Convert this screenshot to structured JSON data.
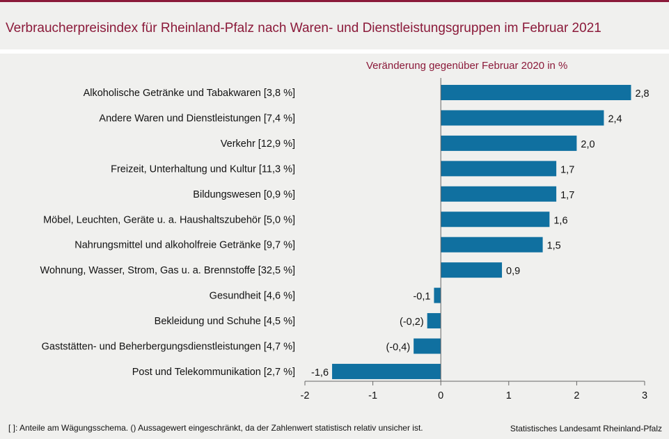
{
  "title": "Verbraucherpreisindex für Rheinland-Pfalz nach Waren- und Dienstleistungsgruppen im Februar 2021",
  "footnote": "[ ]: Anteile am Wägungsschema. () Aussagewert eingeschränkt, da der Zahlenwert statistisch relativ unsicher ist.",
  "source": "Statistisches Landesamt Rheinland-Pfalz",
  "colors": {
    "bar": "#1070a0",
    "title": "#8b1a3a"
  },
  "chart_data": {
    "type": "bar",
    "orientation": "horizontal",
    "title": "Verbraucherpreisindex für Rheinland-Pfalz nach Waren- und Dienstleistungsgruppen im Februar 2021",
    "subtitle": "Veränderung gegenüber Februar 2020 in %",
    "xlabel": "",
    "ylabel": "",
    "xlim": [
      -2,
      3
    ],
    "xticks": [
      -2,
      -1,
      0,
      1,
      2,
      3
    ],
    "grid": false,
    "categories": [
      "Alkoholische Getränke und Tabakwaren [3,8 %]",
      "Andere Waren und Dienstleistungen [7,4 %]",
      "Verkehr [12,9 %]",
      "Freizeit, Unterhaltung und Kultur [11,3 %]",
      "Bildungswesen [0,9 %]",
      "Möbel, Leuchten, Geräte u. a. Haushaltszubehör  [5,0 %]",
      "Nahrungsmittel und alkoholfreie Getränke [9,7 %]",
      "Wohnung, Wasser, Strom, Gas u. a. Brennstoffe [32,5 %]",
      "Gesundheit [4,6 %]",
      "Bekleidung und Schuhe [4,5 %]",
      "Gaststätten- und Beherbergungsdienstleistungen [4,7 %]",
      "Post und Telekommunikation [2,7 %]"
    ],
    "values": [
      2.8,
      2.4,
      2.0,
      1.7,
      1.7,
      1.6,
      1.5,
      0.9,
      -0.1,
      -0.2,
      -0.4,
      -1.6
    ],
    "value_labels": [
      "2,8",
      "2,4",
      "2,0",
      "1,7",
      "1,7",
      "1,6",
      "1,5",
      "0,9",
      "-0,1",
      "(-0,2)",
      "(-0,4)",
      "-1,6"
    ]
  }
}
